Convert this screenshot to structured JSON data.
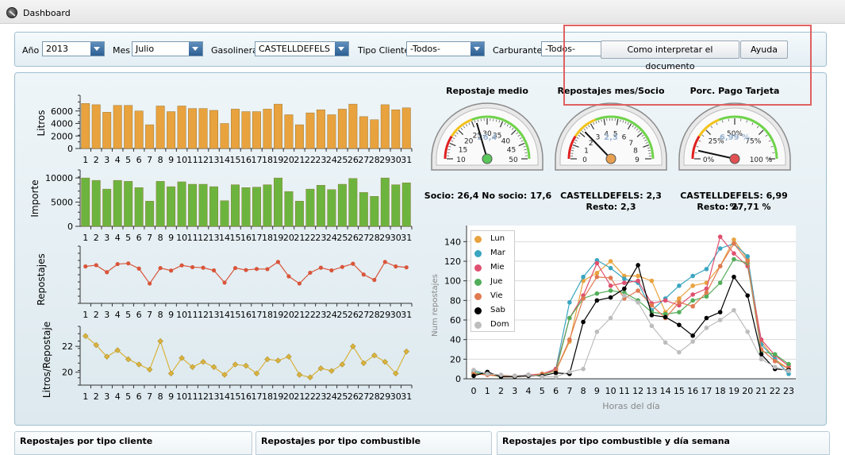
{
  "window": {
    "title": "Dashboard"
  },
  "filters": {
    "anio": {
      "label": "Año",
      "value": "2013"
    },
    "mes": {
      "label": "Mes",
      "value": "Julio"
    },
    "gasolinera": {
      "label": "Gasolinera",
      "value": "CASTELLDEFELS"
    },
    "tipo_cliente": {
      "label": "Tipo Cliente",
      "value": "-Todos-"
    },
    "carburante": {
      "label": "Carburante",
      "value": "-Todos-"
    }
  },
  "buttons": {
    "interpretar": "Como interpretar el documento",
    "ayuda": "Ayuda"
  },
  "gauges": [
    {
      "title": "Repostaje medio",
      "value": 26.4,
      "value_text": "26,4",
      "min": 10,
      "max": 50,
      "ticks": [
        "10",
        "15",
        "20",
        "25",
        "30",
        "35",
        "40",
        "45",
        "50"
      ],
      "needle_color": "#59c75a",
      "caption_lines": [
        "Socio: 26,4 No socio: 17,6"
      ]
    },
    {
      "title": "Repostajes mes/Socio",
      "value": 2.3,
      "value_text": "2,3",
      "min": 0,
      "max": 9,
      "ticks": [
        "0",
        "1",
        "2",
        "3",
        "4",
        "5",
        "6",
        "7",
        "8",
        "9"
      ],
      "needle_color": "#e8a050",
      "caption_lines": [
        "CASTELLDEFELS: 2,3",
        "Resto: 2,3"
      ]
    },
    {
      "title": "Porc. Pago Tarjeta",
      "value": 6.99,
      "value_text": "6,99 %",
      "min": 0,
      "max": 100,
      "ticks": [
        "0%",
        "25%",
        "50%",
        "75%",
        "100 %"
      ],
      "needle_color": "#e05050",
      "caption_lines": [
        "CASTELLDEFELS: 6,99 %",
        "Resto: 27,71 %"
      ]
    }
  ],
  "chart_data": [
    {
      "type": "bar",
      "ylabel": "Litros",
      "categories": [
        "1",
        "2",
        "3",
        "4",
        "5",
        "6",
        "7",
        "8",
        "9",
        "10",
        "11",
        "12",
        "13",
        "14",
        "15",
        "16",
        "17",
        "18",
        "19",
        "20",
        "21",
        "22",
        "23",
        "24",
        "25",
        "26",
        "27",
        "28",
        "29",
        "30",
        "31"
      ],
      "values": [
        7200,
        7000,
        5800,
        6900,
        6900,
        6000,
        3800,
        6800,
        5900,
        6800,
        6400,
        6400,
        6100,
        4000,
        6300,
        5900,
        5900,
        6300,
        7100,
        5400,
        3800,
        5700,
        6200,
        5400,
        6300,
        7100,
        5100,
        4600,
        7000,
        6200,
        6500
      ],
      "ylim": [
        0,
        8000
      ],
      "yticks": [
        0,
        2000,
        4000,
        6000
      ],
      "color": "#e8a23e"
    },
    {
      "type": "bar",
      "ylabel": "Importe",
      "categories": [
        "1",
        "2",
        "3",
        "4",
        "5",
        "6",
        "7",
        "8",
        "9",
        "10",
        "11",
        "12",
        "13",
        "14",
        "15",
        "16",
        "17",
        "18",
        "19",
        "20",
        "21",
        "22",
        "23",
        "24",
        "25",
        "26",
        "27",
        "28",
        "29",
        "30",
        "31"
      ],
      "values": [
        10000,
        9500,
        7700,
        9500,
        9300,
        8000,
        5200,
        9300,
        8200,
        9200,
        8700,
        8700,
        8200,
        5300,
        8600,
        8000,
        8100,
        8600,
        10000,
        7200,
        5200,
        7700,
        8500,
        7600,
        8700,
        9900,
        7000,
        6200,
        10000,
        8600,
        9000
      ],
      "ylim": [
        0,
        11000
      ],
      "yticks": [
        0,
        5000,
        10000
      ],
      "color": "#6db43f"
    },
    {
      "type": "line",
      "ylabel": "Repostajes",
      "categories": [
        "1",
        "2",
        "3",
        "4",
        "5",
        "6",
        "7",
        "8",
        "9",
        "10",
        "11",
        "12",
        "13",
        "14",
        "15",
        "16",
        "17",
        "18",
        "19",
        "20",
        "21",
        "22",
        "23",
        "24",
        "25",
        "26",
        "27",
        "28",
        "29",
        "30",
        "31"
      ],
      "values": [
        305,
        312,
        273,
        318,
        322,
        293,
        210,
        296,
        282,
        311,
        301,
        298,
        283,
        215,
        296,
        285,
        291,
        290,
        330,
        250,
        210,
        270,
        298,
        283,
        302,
        320,
        260,
        230,
        330,
        305,
        300
      ],
      "ylim": [
        100,
        400
      ],
      "yticks": [],
      "color": "#d9553a"
    },
    {
      "type": "line",
      "ylabel": "Litros/Repostaje",
      "categories": [
        "1",
        "2",
        "3",
        "4",
        "5",
        "6",
        "7",
        "8",
        "9",
        "10",
        "11",
        "12",
        "13",
        "14",
        "15",
        "16",
        "17",
        "18",
        "19",
        "20",
        "21",
        "22",
        "23",
        "24",
        "25",
        "26",
        "27",
        "28",
        "29",
        "30",
        "31"
      ],
      "values": [
        22.8,
        22.1,
        21.2,
        21.7,
        21.0,
        20.6,
        20.2,
        22.4,
        19.9,
        21.1,
        20.4,
        20.8,
        20.4,
        19.8,
        20.6,
        20.5,
        19.9,
        21.0,
        20.9,
        21.2,
        19.8,
        19.6,
        20.3,
        20.1,
        20.6,
        22.0,
        20.7,
        21.3,
        20.8,
        19.9,
        21.6
      ],
      "ylim": [
        19,
        23.3
      ],
      "yticks": [
        20,
        22
      ],
      "color": "#d8b23c"
    },
    {
      "type": "line",
      "xlabel": "Horas del día",
      "ylabel": "Num repostajes",
      "x": [
        0,
        1,
        2,
        3,
        4,
        5,
        6,
        7,
        8,
        9,
        10,
        11,
        12,
        13,
        14,
        15,
        16,
        17,
        18,
        19,
        20,
        21,
        22,
        23
      ],
      "ylim": [
        0,
        150
      ],
      "yticks": [
        0,
        20,
        40,
        60,
        80,
        100,
        120,
        140
      ],
      "series": [
        {
          "name": "Lun",
          "color": "#e8a23e",
          "values": [
            5,
            4,
            2,
            2,
            3,
            5,
            8,
            38,
            100,
            108,
            120,
            105,
            105,
            100,
            68,
            82,
            95,
            98,
            115,
            142,
            122,
            38,
            20,
            10
          ]
        },
        {
          "name": "Mar",
          "color": "#3aa5c0",
          "values": [
            8,
            5,
            2,
            3,
            4,
            4,
            10,
            78,
            104,
            121,
            113,
            102,
            98,
            70,
            82,
            95,
            105,
            112,
            133,
            138,
            125,
            35,
            20,
            5
          ]
        },
        {
          "name": "Mie",
          "color": "#e05070",
          "values": [
            6,
            4,
            3,
            3,
            4,
            5,
            10,
            62,
            85,
            118,
            95,
            98,
            100,
            77,
            80,
            75,
            86,
            92,
            145,
            128,
            115,
            40,
            24,
            13
          ]
        },
        {
          "name": "Jue",
          "color": "#52ad5a",
          "values": [
            6,
            5,
            2,
            3,
            3,
            4,
            8,
            62,
            82,
            87,
            90,
            88,
            80,
            68,
            66,
            68,
            80,
            84,
            98,
            122,
            118,
            28,
            25,
            15
          ]
        },
        {
          "name": "Vie",
          "color": "#e07a50",
          "values": [
            5,
            4,
            3,
            3,
            3,
            5,
            8,
            40,
            82,
            104,
            103,
            82,
            90,
            75,
            62,
            78,
            74,
            88,
            115,
            138,
            120,
            30,
            18,
            10
          ]
        },
        {
          "name": "Sab",
          "color": "#000000",
          "values": [
            3,
            7,
            2,
            2,
            3,
            3,
            6,
            5,
            58,
            80,
            83,
            92,
            116,
            65,
            63,
            55,
            44,
            62,
            68,
            104,
            85,
            25,
            10,
            9
          ]
        },
        {
          "name": "Dom",
          "color": "#bdbdbd",
          "values": [
            9,
            5,
            4,
            3,
            4,
            2,
            2,
            7,
            10,
            48,
            62,
            85,
            78,
            54,
            37,
            27,
            38,
            52,
            60,
            70,
            48,
            20,
            12,
            8
          ]
        }
      ]
    }
  ],
  "bottom_panels": [
    "Repostajes por tipo cliente",
    "Repostajes por tipo combustible",
    "Repostajes por tipo combustible y día semana"
  ]
}
